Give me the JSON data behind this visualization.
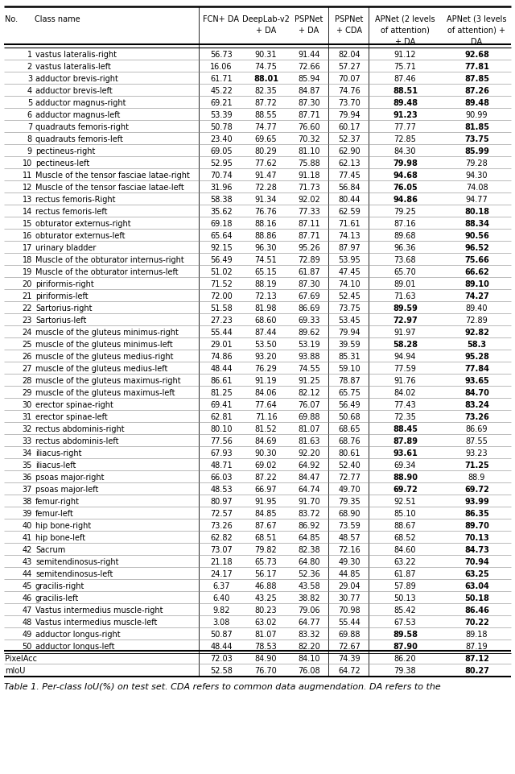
{
  "headers_line1": [
    "No.",
    "Class name",
    "FCN+ DA",
    "DeepLab-v2",
    "PSPNet",
    "PSPNet",
    "APNet (2 levels",
    "APNet (3 levels"
  ],
  "headers_line2": [
    "",
    "",
    "",
    "+ DA",
    "+ DA",
    "+ CDA",
    "of attention)",
    "of attention) +"
  ],
  "headers_line3": [
    "",
    "",
    "",
    "",
    "",
    "",
    "+ DA",
    "DA"
  ],
  "rows": [
    [
      "1",
      "vastus lateralis-right",
      "56.73",
      "90.31",
      "91.44",
      "82.04",
      "91.12",
      "92.68"
    ],
    [
      "2",
      "vastus lateralis-left",
      "16.06",
      "74.75",
      "72.66",
      "57.27",
      "75.71",
      "77.81"
    ],
    [
      "3",
      "adductor brevis-right",
      "61.71",
      "88.01",
      "85.94",
      "70.07",
      "87.46",
      "87.85"
    ],
    [
      "4",
      "adductor brevis-left",
      "45.22",
      "82.35",
      "84.87",
      "74.76",
      "88.51",
      "87.26"
    ],
    [
      "5",
      "adductor magnus-right",
      "69.21",
      "87.72",
      "87.30",
      "73.70",
      "89.48",
      "89.48"
    ],
    [
      "6",
      "adductor magnus-left",
      "53.39",
      "88.55",
      "87.71",
      "79.94",
      "91.23",
      "90.99"
    ],
    [
      "7",
      "quadrauts femoris-right",
      "50.78",
      "74.77",
      "76.60",
      "60.17",
      "77.77",
      "81.85"
    ],
    [
      "8",
      "quadrauts femoris-left",
      "23.40",
      "69.65",
      "70.32",
      "52.37",
      "72.85",
      "73.75"
    ],
    [
      "9",
      "pectineus-right",
      "69.05",
      "80.29",
      "81.10",
      "62.90",
      "84.30",
      "85.99"
    ],
    [
      "10",
      "pectineus-left",
      "52.95",
      "77.62",
      "75.88",
      "62.13",
      "79.98",
      "79.28"
    ],
    [
      "11",
      "Muscle of the tensor fasciae latae-right",
      "70.74",
      "91.47",
      "91.18",
      "77.45",
      "94.68",
      "94.30"
    ],
    [
      "12",
      "Muscle of the tensor fasciae latae-left",
      "31.96",
      "72.28",
      "71.73",
      "56.84",
      "76.05",
      "74.08"
    ],
    [
      "13",
      "rectus femoris-Right",
      "58.38",
      "91.34",
      "92.02",
      "80.44",
      "94.86",
      "94.77"
    ],
    [
      "14",
      "rectus femoris-left",
      "35.62",
      "76.76",
      "77.33",
      "62.59",
      "79.25",
      "80.18"
    ],
    [
      "15",
      "obturator externus-right",
      "69.18",
      "88.16",
      "87.11",
      "71.61",
      "87.16",
      "88.34"
    ],
    [
      "16",
      "obturator externus-left",
      "65.64",
      "88.86",
      "87.71",
      "74.13",
      "89.68",
      "90.56"
    ],
    [
      "17",
      "urinary bladder",
      "92.15",
      "96.30",
      "95.26",
      "87.97",
      "96.36",
      "96.52"
    ],
    [
      "18",
      "Muscle of the obturator internus-right",
      "56.49",
      "74.51",
      "72.89",
      "53.95",
      "73.68",
      "75.66"
    ],
    [
      "19",
      "Muscle of the obturator internus-left",
      "51.02",
      "65.15",
      "61.87",
      "47.45",
      "65.70",
      "66.62"
    ],
    [
      "20",
      "piriformis-right",
      "71.52",
      "88.19",
      "87.30",
      "74.10",
      "89.01",
      "89.10"
    ],
    [
      "21",
      "piriformis-left",
      "72.00",
      "72.13",
      "67.69",
      "52.45",
      "71.63",
      "74.27"
    ],
    [
      "22",
      "Sartorius-right",
      "51.58",
      "81.98",
      "86.69",
      "73.75",
      "89.59",
      "89.40"
    ],
    [
      "23",
      "Sartorius-left",
      "27.23",
      "68.60",
      "69.33",
      "53.45",
      "72.97",
      "72.89"
    ],
    [
      "24",
      "muscle of the gluteus minimus-right",
      "55.44",
      "87.44",
      "89.62",
      "79.94",
      "91.97",
      "92.82"
    ],
    [
      "25",
      "muscle of the gluteus minimus-left",
      "29.01",
      "53.50",
      "53.19",
      "39.59",
      "58.28",
      "58.3"
    ],
    [
      "26",
      "muscle of the gluteus medius-right",
      "74.86",
      "93.20",
      "93.88",
      "85.31",
      "94.94",
      "95.28"
    ],
    [
      "27",
      "muscle of the gluteus medius-left",
      "48.44",
      "76.29",
      "74.55",
      "59.10",
      "77.59",
      "77.84"
    ],
    [
      "28",
      "muscle of the gluteus maximus-right",
      "86.61",
      "91.19",
      "91.25",
      "78.87",
      "91.76",
      "93.65"
    ],
    [
      "29",
      "muscle of the gluteus maximus-left",
      "81.25",
      "84.06",
      "82.12",
      "65.75",
      "84.02",
      "84.70"
    ],
    [
      "30",
      "erector spinae-right",
      "69.41",
      "77.64",
      "76.07",
      "56.49",
      "77.43",
      "83.24"
    ],
    [
      "31",
      "erector spinae-left",
      "62.81",
      "71.16",
      "69.88",
      "50.68",
      "72.35",
      "73.26"
    ],
    [
      "32",
      "rectus abdominis-right",
      "80.10",
      "81.52",
      "81.07",
      "68.65",
      "88.45",
      "86.69"
    ],
    [
      "33",
      "rectus abdominis-left",
      "77.56",
      "84.69",
      "81.63",
      "68.76",
      "87.89",
      "87.55"
    ],
    [
      "34",
      "iliacus-right",
      "67.93",
      "90.30",
      "92.20",
      "80.61",
      "93.61",
      "93.23"
    ],
    [
      "35",
      "iliacus-left",
      "48.71",
      "69.02",
      "64.92",
      "52.40",
      "69.34",
      "71.25"
    ],
    [
      "36",
      "psoas major-right",
      "66.03",
      "87.22",
      "84.47",
      "72.77",
      "88.90",
      "88.9"
    ],
    [
      "37",
      "psoas major-left",
      "48.53",
      "66.97",
      "64.74",
      "49.70",
      "69.72",
      "69.72"
    ],
    [
      "38",
      "femur-right",
      "80.97",
      "91.95",
      "91.70",
      "79.35",
      "92.51",
      "93.99"
    ],
    [
      "39",
      "femur-left",
      "72.57",
      "84.85",
      "83.72",
      "68.90",
      "85.10",
      "86.35"
    ],
    [
      "40",
      "hip bone-right",
      "73.26",
      "87.67",
      "86.92",
      "73.59",
      "88.67",
      "89.70"
    ],
    [
      "41",
      "hip bone-left",
      "62.82",
      "68.51",
      "64.85",
      "48.57",
      "68.52",
      "70.13"
    ],
    [
      "42",
      "Sacrum",
      "73.07",
      "79.82",
      "82.38",
      "72.16",
      "84.60",
      "84.73"
    ],
    [
      "43",
      "semitendinosus-right",
      "21.18",
      "65.73",
      "64.80",
      "49.30",
      "63.22",
      "70.94"
    ],
    [
      "44",
      "semitendinosus-left",
      "24.17",
      "56.17",
      "52.36",
      "44.85",
      "61.87",
      "63.25"
    ],
    [
      "45",
      "gracilis-right",
      "6.37",
      "46.88",
      "43.58",
      "29.04",
      "57.89",
      "63.04"
    ],
    [
      "46",
      "gracilis-left",
      "6.40",
      "43.25",
      "38.82",
      "30.77",
      "50.13",
      "50.18"
    ],
    [
      "47",
      "Vastus intermedius muscle-right",
      "9.82",
      "80.23",
      "79.06",
      "70.98",
      "85.42",
      "86.46"
    ],
    [
      "48",
      "Vastus intermedius muscle-left",
      "3.08",
      "63.02",
      "64.77",
      "55.44",
      "67.53",
      "70.22"
    ],
    [
      "49",
      "adductor longus-right",
      "50.87",
      "81.07",
      "83.32",
      "69.88",
      "89.58",
      "89.18"
    ],
    [
      "50",
      "adductor longus-left",
      "48.44",
      "78.53",
      "82.20",
      "72.67",
      "87.90",
      "87.19"
    ],
    [
      "PixelAcc",
      "",
      "72.03",
      "84.90",
      "84.10",
      "74.39",
      "86.20",
      "87.12"
    ],
    [
      "mIoU",
      "",
      "52.58",
      "76.70",
      "76.08",
      "64.72",
      "79.38",
      "80.27"
    ]
  ],
  "bold_cells": [
    [
      7
    ],
    [
      7
    ],
    [
      3,
      7
    ],
    [
      6,
      7
    ],
    [
      6,
      7
    ],
    [
      6
    ],
    [
      7
    ],
    [
      7
    ],
    [
      7
    ],
    [
      6
    ],
    [
      6
    ],
    [
      6
    ],
    [
      6
    ],
    [
      7
    ],
    [
      7
    ],
    [
      7
    ],
    [
      7
    ],
    [
      7
    ],
    [
      7
    ],
    [
      7
    ],
    [
      7
    ],
    [
      6
    ],
    [
      6
    ],
    [
      7
    ],
    [
      6,
      7
    ],
    [
      7
    ],
    [
      7
    ],
    [
      7
    ],
    [
      7
    ],
    [
      7
    ],
    [
      7
    ],
    [
      6
    ],
    [
      6
    ],
    [
      6
    ],
    [
      7
    ],
    [
      6
    ],
    [
      6,
      7
    ],
    [
      7
    ],
    [
      7
    ],
    [
      7
    ],
    [
      7
    ],
    [
      7
    ],
    [
      7
    ],
    [
      7
    ],
    [
      7
    ],
    [
      7
    ],
    [
      7
    ],
    [
      7
    ],
    [
      6
    ],
    [
      6
    ],
    [
      7
    ],
    [
      7
    ]
  ],
  "caption": "Table 1. Per-class IoU(%) on test set. CDA refers to common data augmendation. DA refers to the",
  "background": "#ffffff",
  "text_color": "#000000",
  "fontsize": 7.0,
  "header_fontsize": 7.0
}
